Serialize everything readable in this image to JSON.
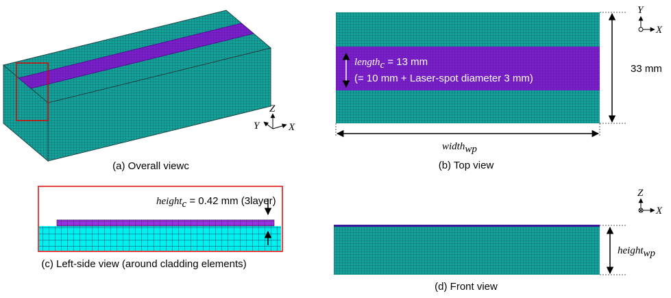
{
  "panels": [
    {
      "caption": "(a) Overall viewc",
      "axes": {
        "z": "Z",
        "y": "Y",
        "x": "X"
      }
    },
    {
      "caption": "(b) Top view",
      "length_label": {
        "name": "length",
        "sub": "c",
        "text": " = 13 mm"
      },
      "note": "(= 10 mm + Laser-spot diameter 3 mm)",
      "dimension": "33 mm",
      "width_label": {
        "name": "width",
        "sub": "wp"
      },
      "axes": {
        "y": "Y",
        "x": "X"
      }
    },
    {
      "caption": "(c) Left-side view (around cladding elements)",
      "height_label": {
        "name": "height",
        "sub": "c",
        "text": " = 0.42 mm (3layer)"
      }
    },
    {
      "caption": "(d) Front view",
      "height_label": {
        "name": "height",
        "sub": "wp"
      },
      "axes": {
        "z": "Z",
        "x": "X"
      }
    }
  ]
}
